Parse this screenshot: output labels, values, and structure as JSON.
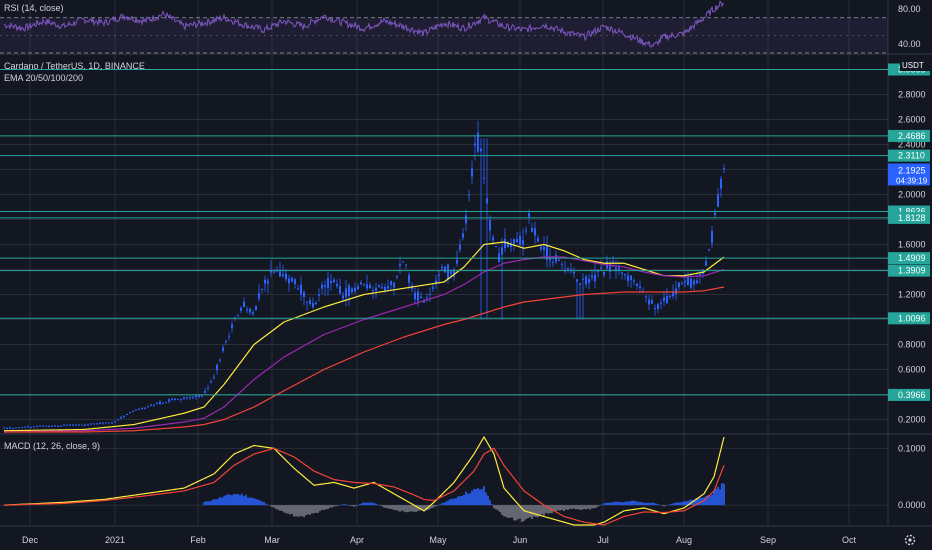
{
  "chart_data": [
    {
      "id": "rsi",
      "type": "line",
      "title": "RSI (14, close)",
      "color": "#7e57c2",
      "band_fill": "rgba(126,87,194,0.10)",
      "ylim": [
        31,
        90
      ],
      "ticks": [
        "80.00",
        "40.00"
      ],
      "tick_values": [
        80,
        40
      ],
      "bands": [
        70,
        30
      ],
      "x": [
        0,
        20,
        40,
        60,
        80,
        100,
        120,
        140,
        160,
        180,
        200,
        220,
        240,
        260,
        280,
        300,
        320,
        340,
        360,
        380,
        400,
        420,
        440,
        460,
        480,
        500,
        520,
        540,
        560,
        580,
        600,
        620,
        640,
        650,
        660,
        680,
        700,
        710,
        720
      ],
      "values": [
        62,
        58,
        66,
        60,
        68,
        64,
        72,
        66,
        74,
        60,
        64,
        70,
        62,
        56,
        66,
        60,
        72,
        64,
        58,
        66,
        60,
        52,
        64,
        58,
        70,
        60,
        56,
        62,
        54,
        48,
        60,
        52,
        42,
        38,
        48,
        52,
        70,
        80,
        88
      ]
    },
    {
      "id": "price",
      "type": "candlestick",
      "title": "Cardano / TetherUS, 1D, BINANCE",
      "subtitle": "EMA 20/50/100/200",
      "unit_label": "USDT",
      "ylim": [
        0.1,
        3.1
      ],
      "y_ticks": [
        0.2,
        0.4,
        0.6,
        0.8,
        1.0,
        1.2,
        1.4,
        1.6,
        1.8,
        2.0,
        2.2,
        2.4,
        2.6,
        2.8
      ],
      "y_tick_labels": [
        "0.2000",
        "0.4000",
        "0.6000",
        "0.8000",
        "1.0000",
        "1.2000",
        "1.4000",
        "1.6000",
        "1.8000",
        "2.0000",
        "2.2000",
        "2.4000",
        "2.6000",
        "2.8000"
      ],
      "last_price": {
        "value": 2.1925,
        "label": "2.1925",
        "countdown": "04:39:19",
        "color": "#2962ff"
      },
      "horizontal_levels": [
        {
          "value": 3.0,
          "label": "3.0000"
        },
        {
          "value": 2.4686,
          "label": "2.4686"
        },
        {
          "value": 2.311,
          "label": "2.3110"
        },
        {
          "value": 1.8636,
          "label": "1.8636"
        },
        {
          "value": 1.8128,
          "label": "1.8128"
        },
        {
          "value": 1.4909,
          "label": "1.4909"
        },
        {
          "value": 1.3909,
          "label": "1.3909"
        },
        {
          "value": 1.0096,
          "label": "1.0096"
        },
        {
          "value": 0.3966,
          "label": "0.3966"
        }
      ],
      "level_color": "#26a69a",
      "candle_color": "#2962ff",
      "key_points": {
        "x": [
          0,
          40,
          80,
          110,
          130,
          150,
          170,
          190,
          200,
          210,
          220,
          230,
          240,
          250,
          260,
          270,
          280,
          290,
          300,
          310,
          320,
          330,
          340,
          350,
          360,
          370,
          380,
          390,
          400,
          410,
          420,
          430,
          440,
          450,
          460,
          470,
          475,
          480,
          485,
          490,
          495,
          500,
          510,
          520,
          525,
          530,
          540,
          550,
          560,
          570,
          580,
          590,
          600,
          610,
          620,
          630,
          640,
          650,
          655,
          660,
          670,
          680,
          690,
          700,
          705,
          710,
          715,
          720
        ],
        "y": [
          0.13,
          0.15,
          0.16,
          0.18,
          0.27,
          0.32,
          0.36,
          0.38,
          0.4,
          0.55,
          0.78,
          0.98,
          1.1,
          1.05,
          1.3,
          1.4,
          1.35,
          1.3,
          1.2,
          1.1,
          1.3,
          1.3,
          1.2,
          1.25,
          1.28,
          1.25,
          1.25,
          1.3,
          1.45,
          1.2,
          1.15,
          1.3,
          1.4,
          1.35,
          1.7,
          2.3,
          2.45,
          2.1,
          1.8,
          1.6,
          1.5,
          1.6,
          1.6,
          1.65,
          1.8,
          1.7,
          1.55,
          1.5,
          1.45,
          1.35,
          1.3,
          1.35,
          1.4,
          1.45,
          1.35,
          1.3,
          1.2,
          1.1,
          1.1,
          1.15,
          1.2,
          1.3,
          1.3,
          1.4,
          1.5,
          1.8,
          2.0,
          2.2
        ]
      },
      "ema_series": [
        {
          "name": "EMA 20",
          "color": "#ffeb3b",
          "x": [
            0,
            80,
            130,
            180,
            200,
            220,
            250,
            280,
            320,
            360,
            400,
            440,
            460,
            480,
            500,
            520,
            540,
            560,
            580,
            600,
            620,
            640,
            660,
            680,
            700,
            720
          ],
          "values": [
            0.11,
            0.12,
            0.16,
            0.25,
            0.3,
            0.48,
            0.8,
            0.98,
            1.1,
            1.2,
            1.25,
            1.3,
            1.42,
            1.6,
            1.62,
            1.57,
            1.6,
            1.55,
            1.48,
            1.45,
            1.45,
            1.4,
            1.35,
            1.35,
            1.38,
            1.5
          ]
        },
        {
          "name": "EMA 50",
          "color": "#9c27b0",
          "x": [
            0,
            80,
            130,
            180,
            200,
            220,
            250,
            280,
            320,
            360,
            400,
            440,
            460,
            480,
            500,
            520,
            540,
            560,
            580,
            600,
            620,
            640,
            660,
            680,
            700,
            720
          ],
          "values": [
            0.1,
            0.11,
            0.13,
            0.18,
            0.21,
            0.3,
            0.52,
            0.7,
            0.88,
            1.0,
            1.1,
            1.2,
            1.28,
            1.38,
            1.45,
            1.48,
            1.5,
            1.5,
            1.47,
            1.44,
            1.42,
            1.38,
            1.35,
            1.34,
            1.35,
            1.4
          ]
        },
        {
          "name": "EMA 100",
          "color": "#f44336",
          "x": [
            0,
            80,
            130,
            180,
            200,
            220,
            250,
            280,
            320,
            360,
            400,
            440,
            460,
            480,
            500,
            520,
            540,
            560,
            580,
            600,
            620,
            640,
            660,
            680,
            700,
            720
          ],
          "values": [
            0.1,
            0.1,
            0.11,
            0.14,
            0.16,
            0.2,
            0.3,
            0.43,
            0.6,
            0.74,
            0.86,
            0.96,
            1.0,
            1.05,
            1.1,
            1.14,
            1.16,
            1.18,
            1.2,
            1.21,
            1.22,
            1.22,
            1.22,
            1.22,
            1.23,
            1.26
          ]
        }
      ]
    },
    {
      "id": "macd",
      "type": "line",
      "title": "MACD (12, 26, close, 9)",
      "ylim": [
        -0.035,
        0.12
      ],
      "y_ticks": [
        0.0,
        0.1
      ],
      "y_tick_labels": [
        "0.0000",
        "0.1000"
      ],
      "series": [
        {
          "name": "MACD",
          "color": "#ffeb3b",
          "x": [
            0,
            60,
            100,
            140,
            180,
            210,
            230,
            250,
            270,
            290,
            310,
            330,
            350,
            370,
            390,
            410,
            420,
            430,
            450,
            470,
            480,
            490,
            500,
            520,
            540,
            560,
            580,
            600,
            620,
            640,
            660,
            680,
            700,
            710,
            720
          ],
          "values": [
            0.0,
            0.005,
            0.01,
            0.02,
            0.03,
            0.055,
            0.09,
            0.105,
            0.1,
            0.065,
            0.035,
            0.04,
            0.03,
            0.04,
            0.02,
            0.0,
            -0.01,
            0.005,
            0.04,
            0.09,
            0.12,
            0.09,
            0.03,
            -0.01,
            -0.02,
            -0.03,
            -0.04,
            -0.03,
            -0.01,
            -0.005,
            -0.015,
            -0.005,
            0.02,
            0.05,
            0.12
          ]
        },
        {
          "name": "Signal",
          "color": "#f44336",
          "x": [
            0,
            60,
            100,
            140,
            180,
            210,
            230,
            250,
            270,
            290,
            310,
            330,
            350,
            370,
            390,
            410,
            420,
            430,
            450,
            470,
            480,
            490,
            500,
            520,
            540,
            560,
            580,
            600,
            620,
            640,
            660,
            680,
            700,
            710,
            720
          ],
          "values": [
            0.0,
            0.003,
            0.008,
            0.016,
            0.025,
            0.04,
            0.07,
            0.09,
            0.1,
            0.085,
            0.06,
            0.045,
            0.04,
            0.038,
            0.032,
            0.018,
            0.01,
            0.008,
            0.025,
            0.06,
            0.09,
            0.1,
            0.07,
            0.025,
            0.0,
            -0.02,
            -0.03,
            -0.035,
            -0.02,
            -0.012,
            -0.013,
            -0.01,
            0.008,
            0.025,
            0.07
          ]
        }
      ],
      "histogram": {
        "x": [
          200,
          210,
          220,
          230,
          240,
          250,
          260,
          270,
          280,
          290,
          300,
          310,
          320,
          330,
          340,
          350,
          360,
          370,
          380,
          390,
          400,
          410,
          420,
          430,
          440,
          450,
          460,
          470,
          480,
          490,
          500,
          510,
          520,
          530,
          540,
          550,
          560,
          570,
          580,
          590,
          600,
          610,
          620,
          630,
          640,
          650,
          660,
          670,
          680,
          690,
          700,
          705,
          710,
          715,
          720
        ],
        "values": [
          0.005,
          0.01,
          0.015,
          0.02,
          0.018,
          0.012,
          0.005,
          -0.005,
          -0.012,
          -0.018,
          -0.02,
          -0.015,
          -0.008,
          -0.003,
          0.002,
          -0.003,
          0.005,
          0.004,
          -0.004,
          -0.008,
          -0.012,
          -0.012,
          -0.01,
          -0.004,
          0.005,
          0.012,
          0.02,
          0.026,
          0.03,
          -0.005,
          -0.018,
          -0.025,
          -0.028,
          -0.022,
          -0.016,
          -0.012,
          -0.009,
          -0.006,
          -0.008,
          -0.006,
          0.003,
          0.006,
          0.006,
          0.008,
          0.004,
          0.004,
          -0.002,
          0.004,
          0.006,
          0.01,
          0.014,
          0.018,
          0.022,
          0.03,
          0.04
        ],
        "positive_color": "#2962ff",
        "negative_color": "#787b86"
      }
    }
  ],
  "x_axis": {
    "labels": [
      "Dec",
      "2021",
      "Feb",
      "Mar",
      "Apr",
      "May",
      "Jun",
      "Jul",
      "Aug",
      "Sep",
      "Oct"
    ],
    "positions": [
      30,
      115,
      198,
      272,
      357,
      438,
      520,
      603,
      684,
      768,
      849
    ]
  },
  "colors": {
    "background": "#131722",
    "grid": "#2a2e39",
    "text": "#d1d4dc",
    "pane_border": "#363a45"
  },
  "footer_icon": "settings-gear-icon"
}
